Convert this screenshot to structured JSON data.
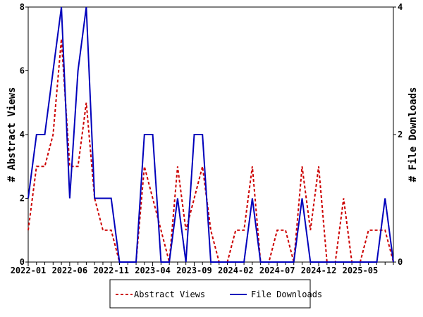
{
  "chart_data": {
    "type": "line",
    "x": [
      "2022-01",
      "2022-02",
      "2022-03",
      "2022-04",
      "2022-05",
      "2022-06",
      "2022-07",
      "2022-08",
      "2022-09",
      "2022-10",
      "2022-11",
      "2022-12",
      "2023-01",
      "2023-02",
      "2023-03",
      "2023-04",
      "2023-05",
      "2023-06",
      "2023-07",
      "2023-08",
      "2023-09",
      "2023-10",
      "2023-11",
      "2023-12",
      "2024-01",
      "2024-02",
      "2024-03",
      "2024-04",
      "2024-05",
      "2024-06",
      "2024-07",
      "2024-08",
      "2024-09",
      "2024-10",
      "2024-11",
      "2024-12",
      "2025-01",
      "2025-02",
      "2025-03",
      "2025-04",
      "2025-05",
      "2025-06",
      "2025-07",
      "2025-08",
      "2025-09"
    ],
    "x_tick_labels": [
      "2022-01",
      "2022-06",
      "2022-11",
      "2023-04",
      "2023-09",
      "2024-02",
      "2024-07",
      "2024-12",
      "2025-05"
    ],
    "series": [
      {
        "name": "Abstract Views",
        "axis": "left",
        "color": "#cc0000",
        "style": "dashed",
        "values": [
          1,
          3,
          3,
          4,
          7,
          3,
          3,
          5,
          2,
          1,
          1,
          0,
          0,
          0,
          3,
          2,
          1,
          0,
          3,
          1,
          2,
          3,
          1,
          0,
          0,
          1,
          1,
          3,
          0,
          0,
          1,
          1,
          0,
          3,
          1,
          3,
          0,
          0,
          2,
          0,
          0,
          1,
          1,
          1,
          0
        ]
      },
      {
        "name": "File Downloads",
        "axis": "right",
        "color": "#0000bb",
        "style": "solid",
        "values": [
          1,
          2,
          2,
          3,
          4,
          1,
          3,
          4,
          1,
          1,
          1,
          0,
          0,
          0,
          2,
          2,
          0,
          0,
          1,
          0,
          2,
          2,
          0,
          0,
          0,
          0,
          0,
          1,
          0,
          0,
          0,
          0,
          0,
          1,
          0,
          0,
          0,
          0,
          0,
          0,
          0,
          0,
          0,
          1,
          0
        ]
      }
    ],
    "ylabel": "# Abstract Views",
    "y2label": "# File Downloads",
    "ylim": [
      0,
      8
    ],
    "y2lim": [
      0,
      4
    ],
    "y_ticks": [
      "0",
      "2",
      "4",
      "6",
      "8"
    ],
    "y2_ticks": [
      "0",
      "2",
      "4"
    ],
    "legend": "bottom-center",
    "grid": false
  }
}
